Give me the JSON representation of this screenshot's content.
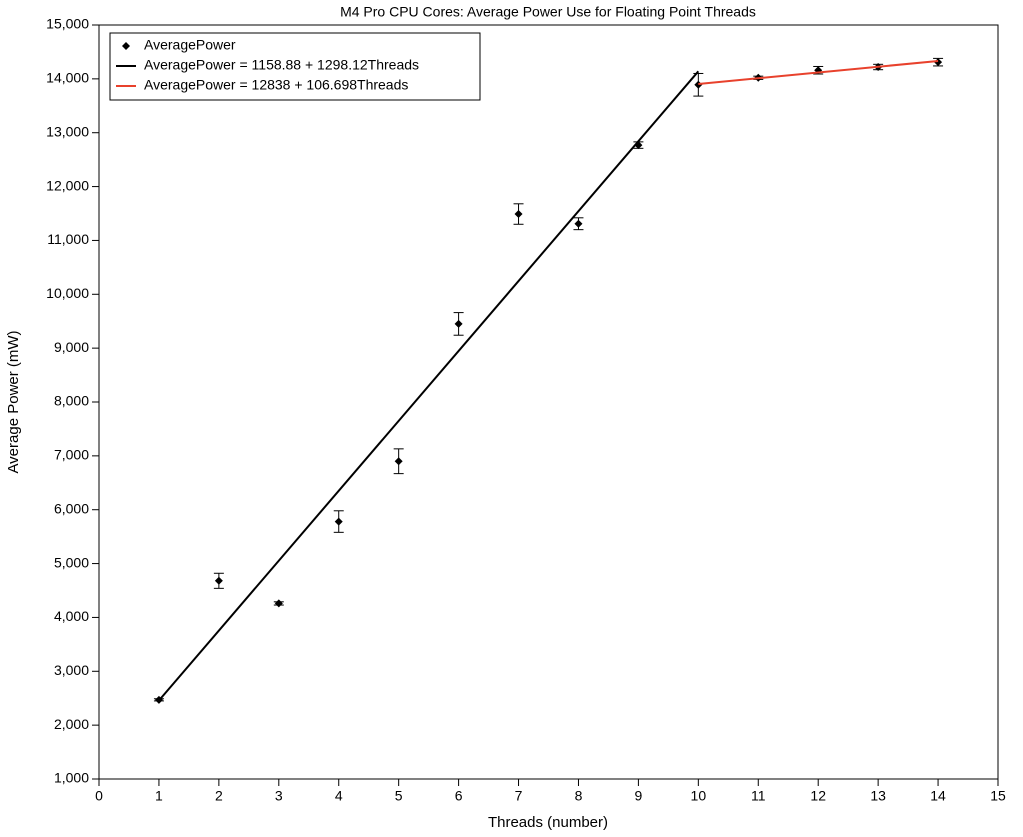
{
  "chart_data": {
    "type": "scatter",
    "title": "M4 Pro CPU Cores: Average Power Use for Floating Point Threads",
    "x_label": "Threads (number)",
    "y_label": "Average Power (mW)",
    "xlim": [
      0,
      15
    ],
    "xticks": [
      0,
      1,
      2,
      3,
      4,
      5,
      6,
      7,
      8,
      9,
      10,
      11,
      12,
      13,
      14,
      15
    ],
    "ylim": [
      1000,
      15000
    ],
    "yticks": [
      {
        "value": 1000,
        "label": "1,000"
      },
      {
        "value": 2000,
        "label": "2,000"
      },
      {
        "value": 3000,
        "label": "3,000"
      },
      {
        "value": 4000,
        "label": "4,000"
      },
      {
        "value": 5000,
        "label": "5,000"
      },
      {
        "value": 6000,
        "label": "6,000"
      },
      {
        "value": 7000,
        "label": "7,000"
      },
      {
        "value": 8000,
        "label": "8,000"
      },
      {
        "value": 9000,
        "label": "9,000"
      },
      {
        "value": 10000,
        "label": "10,000"
      },
      {
        "value": 11000,
        "label": "11,000"
      },
      {
        "value": 12000,
        "label": "12,000"
      },
      {
        "value": 13000,
        "label": "13,000"
      },
      {
        "value": 14000,
        "label": "14,000"
      },
      {
        "value": 15000,
        "label": "15,000"
      }
    ],
    "legend": "upper left",
    "series": [
      {
        "name": "AveragePower",
        "color": "#000000",
        "type": "scatter",
        "x": [
          1,
          2,
          3,
          4,
          5,
          6,
          7,
          8,
          9,
          10,
          11,
          12,
          13,
          14
        ],
        "values": [
          2470,
          4680,
          4260,
          5780,
          6900,
          9450,
          11490,
          11310,
          12770,
          13890,
          14020,
          14160,
          14220,
          14310
        ],
        "errors": [
          20,
          140,
          30,
          200,
          230,
          210,
          190,
          110,
          60,
          210,
          30,
          70,
          50,
          70
        ]
      },
      {
        "name": "AveragePower = 1158.88 + 1298.12Threads",
        "color": "#000000",
        "type": "line",
        "x": [
          1,
          10
        ],
        "values": [
          2457,
          14140
        ]
      },
      {
        "name": "AveragePower = 12838 + 106.698Threads",
        "color": "#e8412c",
        "type": "line",
        "x": [
          10,
          14
        ],
        "values": [
          13905,
          14332
        ]
      }
    ]
  }
}
